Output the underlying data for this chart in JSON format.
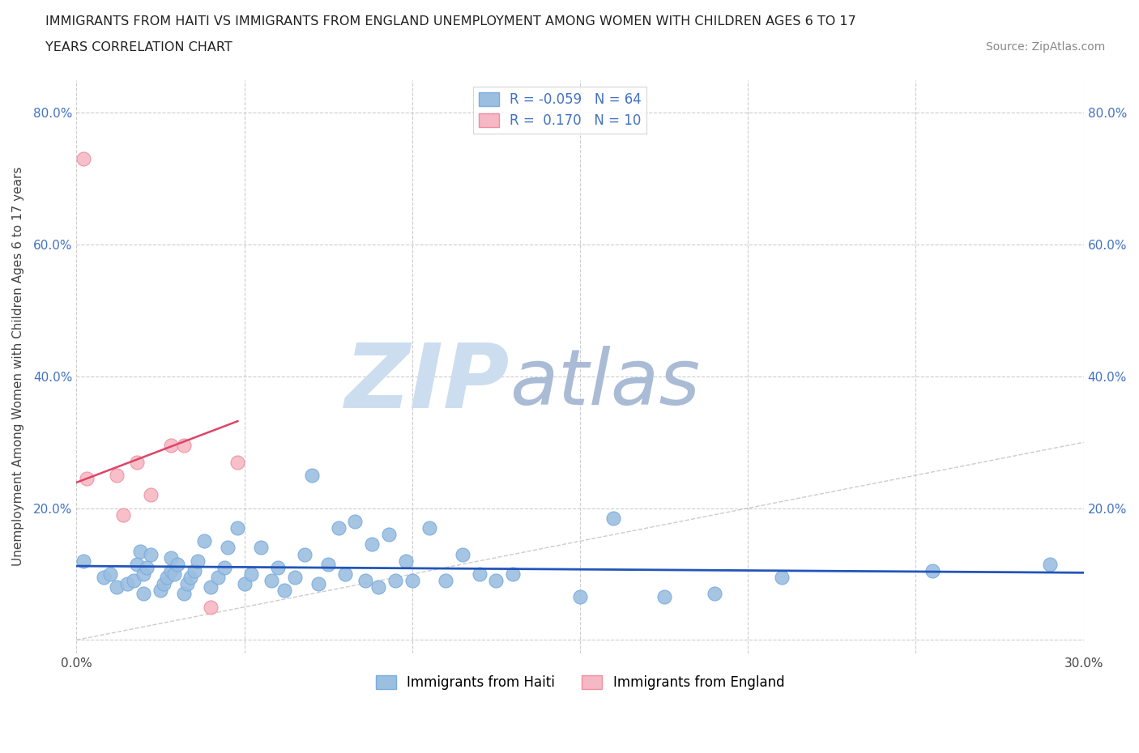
{
  "title_line1": "IMMIGRANTS FROM HAITI VS IMMIGRANTS FROM ENGLAND UNEMPLOYMENT AMONG WOMEN WITH CHILDREN AGES 6 TO 17",
  "title_line2": "YEARS CORRELATION CHART",
  "source_text": "Source: ZipAtlas.com",
  "ylabel": "Unemployment Among Women with Children Ages 6 to 17 years",
  "xlim": [
    0.0,
    0.3
  ],
  "ylim": [
    -0.02,
    0.85
  ],
  "xticks": [
    0.0,
    0.05,
    0.1,
    0.15,
    0.2,
    0.25,
    0.3
  ],
  "yticks": [
    0.0,
    0.2,
    0.4,
    0.6,
    0.8
  ],
  "grid_color": "#cccccc",
  "background_color": "#ffffff",
  "watermark_zip": "ZIP",
  "watermark_atlas": "atlas",
  "watermark_color_zip": "#ccddf0",
  "watermark_color_atlas": "#aabbd5",
  "haiti_color": "#9bbfe0",
  "haiti_edge_color": "#7aabdd",
  "england_color": "#f5b8c4",
  "england_edge_color": "#ee8fa0",
  "haiti_R": -0.059,
  "haiti_N": 64,
  "england_R": 0.17,
  "england_N": 10,
  "haiti_trend_color": "#2255bb",
  "england_trend_color": "#dd4466",
  "diagonal_color": "#cccccc",
  "haiti_x": [
    0.002,
    0.008,
    0.01,
    0.012,
    0.015,
    0.017,
    0.018,
    0.019,
    0.02,
    0.02,
    0.021,
    0.022,
    0.025,
    0.026,
    0.027,
    0.028,
    0.028,
    0.029,
    0.03,
    0.032,
    0.033,
    0.034,
    0.035,
    0.036,
    0.038,
    0.04,
    0.042,
    0.044,
    0.045,
    0.048,
    0.05,
    0.052,
    0.055,
    0.058,
    0.06,
    0.062,
    0.065,
    0.068,
    0.07,
    0.072,
    0.075,
    0.078,
    0.08,
    0.083,
    0.086,
    0.088,
    0.09,
    0.093,
    0.095,
    0.098,
    0.1,
    0.105,
    0.11,
    0.115,
    0.12,
    0.125,
    0.13,
    0.15,
    0.16,
    0.175,
    0.19,
    0.21,
    0.255,
    0.29
  ],
  "haiti_y": [
    0.12,
    0.095,
    0.1,
    0.08,
    0.085,
    0.09,
    0.115,
    0.135,
    0.07,
    0.1,
    0.11,
    0.13,
    0.075,
    0.085,
    0.095,
    0.105,
    0.125,
    0.1,
    0.115,
    0.07,
    0.085,
    0.095,
    0.105,
    0.12,
    0.15,
    0.08,
    0.095,
    0.11,
    0.14,
    0.17,
    0.085,
    0.1,
    0.14,
    0.09,
    0.11,
    0.075,
    0.095,
    0.13,
    0.25,
    0.085,
    0.115,
    0.17,
    0.1,
    0.18,
    0.09,
    0.145,
    0.08,
    0.16,
    0.09,
    0.12,
    0.09,
    0.17,
    0.09,
    0.13,
    0.1,
    0.09,
    0.1,
    0.065,
    0.185,
    0.065,
    0.07,
    0.095,
    0.105,
    0.115
  ],
  "england_x": [
    0.002,
    0.003,
    0.012,
    0.014,
    0.018,
    0.022,
    0.028,
    0.032,
    0.04,
    0.048
  ],
  "england_y": [
    0.73,
    0.245,
    0.25,
    0.19,
    0.27,
    0.22,
    0.295,
    0.295,
    0.05,
    0.27
  ]
}
